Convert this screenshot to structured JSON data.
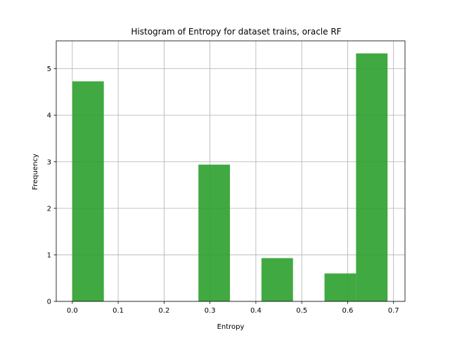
{
  "chart_data": {
    "type": "bar",
    "title": "Histogram of Entropy for dataset trains, oracle RF",
    "xlabel": "Entropy",
    "ylabel": "Frequency",
    "xlim": [
      -0.035,
      0.725
    ],
    "ylim": [
      0,
      5.6
    ],
    "xticks": [
      0.0,
      0.1,
      0.2,
      0.3,
      0.4,
      0.5,
      0.6,
      0.7
    ],
    "xtick_labels": [
      "0.0",
      "0.1",
      "0.2",
      "0.3",
      "0.4",
      "0.5",
      "0.6",
      "0.7"
    ],
    "yticks": [
      0,
      1,
      2,
      3,
      4,
      5
    ],
    "ytick_labels": [
      "0",
      "1",
      "2",
      "3",
      "4",
      "5"
    ],
    "grid": true,
    "bar_color": "#2ca02c",
    "bar_opacity": 0.9,
    "bins": [
      {
        "x0": 0.0,
        "x1": 0.0687,
        "value": 4.73
      },
      {
        "x0": 0.0687,
        "x1": 0.1374,
        "value": 0
      },
      {
        "x0": 0.1374,
        "x1": 0.2061,
        "value": 0
      },
      {
        "x0": 0.2061,
        "x1": 0.2748,
        "value": 0
      },
      {
        "x0": 0.2748,
        "x1": 0.3435,
        "value": 2.94
      },
      {
        "x0": 0.3435,
        "x1": 0.4122,
        "value": 0
      },
      {
        "x0": 0.4122,
        "x1": 0.4809,
        "value": 0.93
      },
      {
        "x0": 0.4809,
        "x1": 0.5496,
        "value": 0
      },
      {
        "x0": 0.5496,
        "x1": 0.6183,
        "value": 0.6
      },
      {
        "x0": 0.6183,
        "x1": 0.687,
        "value": 5.33
      }
    ]
  }
}
